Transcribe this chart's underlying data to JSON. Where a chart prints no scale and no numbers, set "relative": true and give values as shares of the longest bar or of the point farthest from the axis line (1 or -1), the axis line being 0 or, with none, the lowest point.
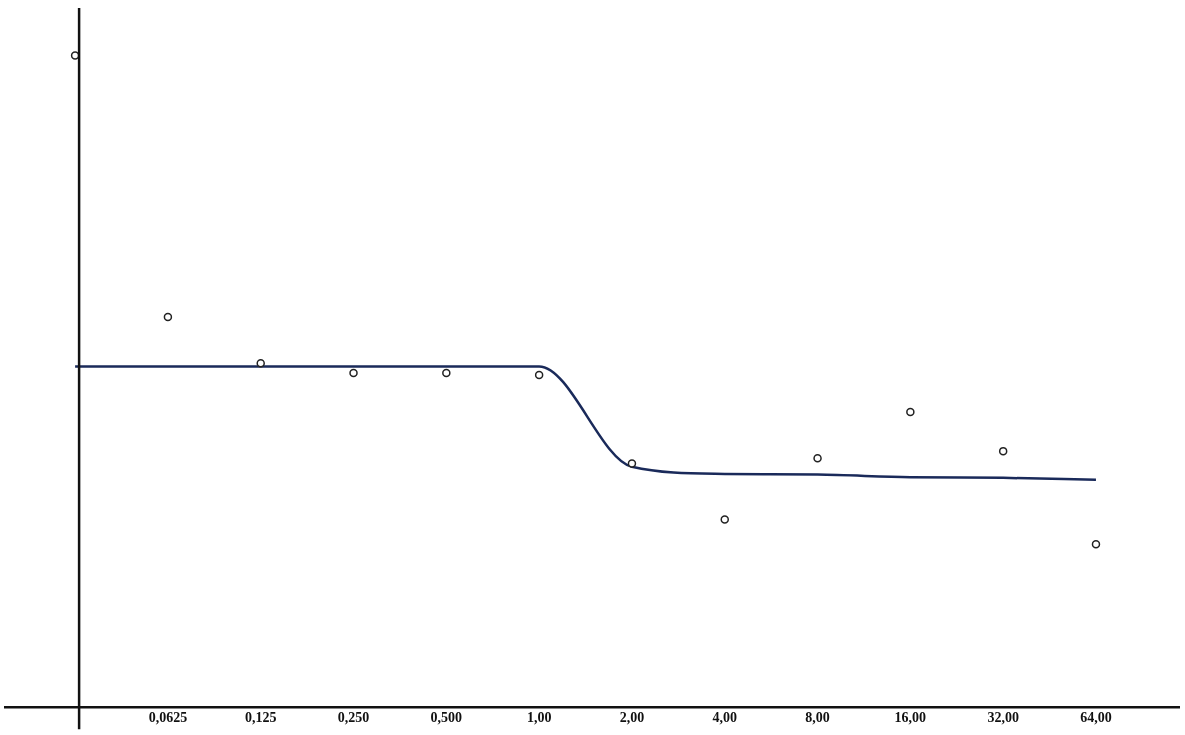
{
  "chart_data": {
    "type": "scatter",
    "relative": true,
    "categories": [
      null,
      "0,0625",
      "0,125",
      "0,250",
      "0,500",
      "1,00",
      "2,00",
      "4,00",
      "8,00",
      "16,00",
      "32,00",
      "64,00"
    ],
    "series": [
      {
        "color": "#222222",
        "marker": "circle",
        "values": [
          1,
          0.599,
          0.528,
          0.513,
          0.513,
          0.51,
          0.374,
          0.288,
          0.382,
          0.453,
          0.393,
          0.25
        ]
      },
      {
        "type": "line",
        "marker": "none",
        "color": "#1a2a5a",
        "values": [
          0.523,
          0.523,
          0.523,
          0.523,
          0.523,
          0.523,
          0.369,
          0.358,
          0.357,
          0.353,
          0.352,
          0.349
        ]
      }
    ]
  }
}
